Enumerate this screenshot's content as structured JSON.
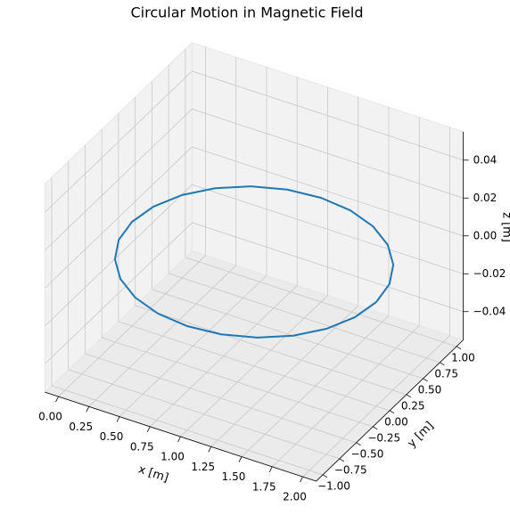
{
  "chart_data": {
    "type": "line3d",
    "title": "Circular Motion in Magnetic Field",
    "xlabel": "x [m]",
    "ylabel": "y [m]",
    "zlabel": "z [m]",
    "color": "#1f77b4",
    "grid": true,
    "x": [
      2,
      1.966,
      1.866,
      1.707,
      1.5,
      1.259,
      1,
      0.741,
      0.5,
      0.293,
      0.134,
      0.034,
      0,
      0.034,
      0.134,
      0.293,
      0.5,
      0.741,
      1,
      1.259,
      1.5,
      1.707,
      1.866,
      1.966,
      2
    ],
    "y": [
      0,
      0.259,
      0.5,
      0.707,
      0.866,
      0.966,
      1,
      0.966,
      0.866,
      0.707,
      0.5,
      0.259,
      0,
      -0.259,
      -0.5,
      -0.707,
      -0.866,
      -0.966,
      -1,
      -0.966,
      -0.866,
      -0.707,
      -0.5,
      -0.259,
      0
    ],
    "z": [
      0,
      0,
      0,
      0,
      0,
      0,
      0,
      0,
      0,
      0,
      0,
      0,
      0,
      0,
      0,
      0,
      0,
      0,
      0,
      0,
      0,
      0,
      0,
      0,
      0
    ],
    "xlim": [
      -0.11,
      2.11
    ],
    "ylim": [
      -1.1,
      1.1
    ],
    "zlim": [
      -0.055,
      0.055
    ],
    "xticks": [
      {
        "value": 0,
        "label": "0.00"
      },
      0.25,
      {
        "value": 0.5,
        "label": "0.50"
      },
      0.75,
      {
        "value": 1,
        "label": "1.00"
      },
      1.25,
      {
        "value": 1.5,
        "label": "1.50"
      },
      1.75,
      {
        "value": 2,
        "label": "2.00"
      }
    ],
    "yticks": [
      {
        "value": -1,
        "label": "−1.00"
      },
      {
        "value": -0.75,
        "label": "−0.75"
      },
      {
        "value": -0.5,
        "label": "−0.50"
      },
      {
        "value": -0.25,
        "label": "−0.25"
      },
      {
        "value": 0,
        "label": "0.00"
      },
      0.25,
      {
        "value": 0.5,
        "label": "0.50"
      },
      0.75,
      {
        "value": 1,
        "label": "1.00"
      }
    ],
    "zticks": [
      {
        "value": -0.04,
        "label": "−0.04"
      },
      {
        "value": -0.02,
        "label": "−0.02"
      },
      {
        "value": 0,
        "label": "0.00"
      },
      0.02,
      0.04
    ]
  }
}
